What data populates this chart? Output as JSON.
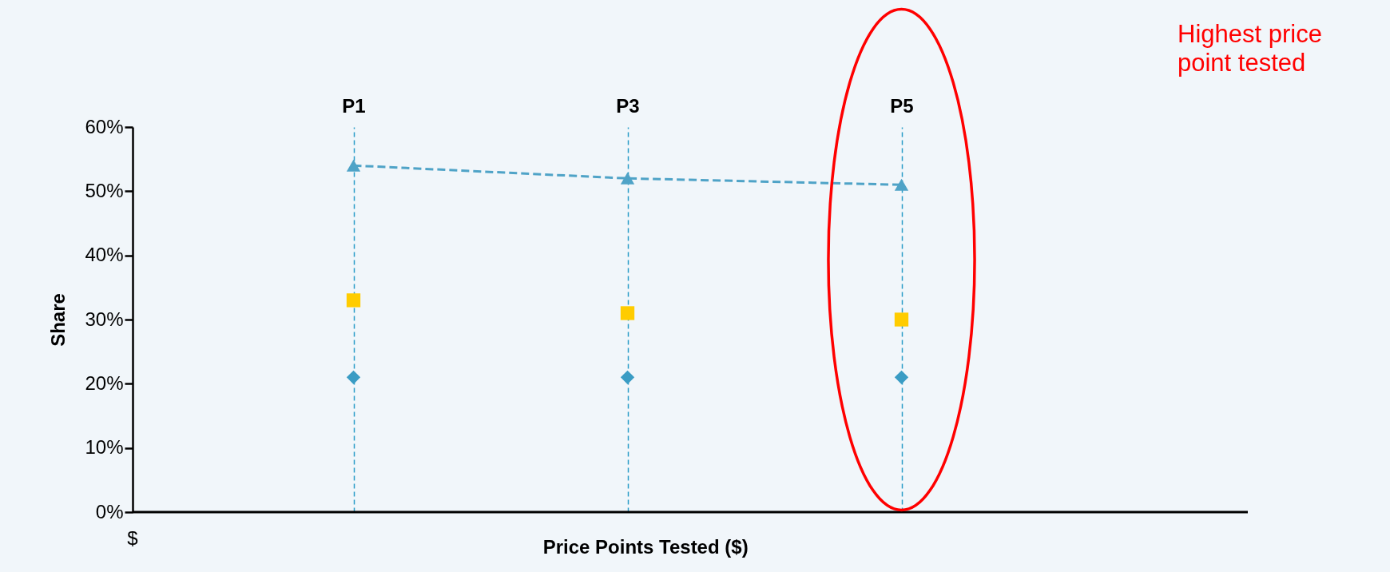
{
  "chart_data": {
    "type": "scatter",
    "xlabel": "Price Points Tested ($)",
    "ylabel": "Share",
    "categories": [
      "P1",
      "P3",
      "P5"
    ],
    "ylim": [
      0,
      60
    ],
    "yticks": [
      {
        "value": 0,
        "label": "0%"
      },
      {
        "value": 10,
        "label": "10%"
      },
      {
        "value": 20,
        "label": "20%"
      },
      {
        "value": 30,
        "label": "30%"
      },
      {
        "value": 40,
        "label": "40%"
      },
      {
        "value": 50,
        "label": "50%"
      },
      {
        "value": 60,
        "label": "60%"
      }
    ],
    "series": [
      {
        "type": "line",
        "color": "#4fa3c7",
        "marker": "triangle",
        "line_style": "dashed",
        "values": [
          54,
          52,
          51
        ]
      },
      {
        "color": "#ffcc00",
        "marker": "square",
        "values": [
          33,
          31,
          30
        ]
      },
      {
        "color": "#3a9cc4",
        "marker": "diamond",
        "values": [
          21,
          21,
          21
        ]
      }
    ],
    "grid": "x",
    "annotations": [
      "$",
      "Highest price point tested"
    ]
  }
}
